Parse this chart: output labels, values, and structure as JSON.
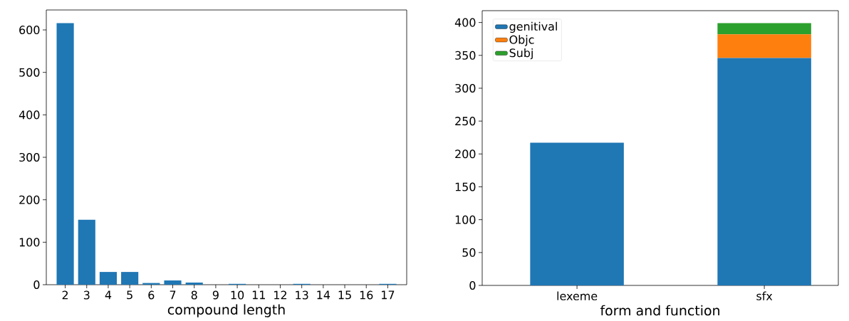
{
  "chart_data": [
    {
      "type": "bar",
      "xlabel": "compound length",
      "categories": [
        "2",
        "3",
        "4",
        "5",
        "6",
        "7",
        "8",
        "9",
        "10",
        "11",
        "12",
        "13",
        "14",
        "15",
        "16",
        "17"
      ],
      "values": [
        616,
        153,
        30,
        30,
        4,
        10,
        5,
        0,
        2,
        0,
        0,
        2,
        0,
        0,
        0,
        2
      ],
      "color": "#1f77b4",
      "ylim": [
        0,
        647
      ],
      "yticks": [
        0,
        100,
        200,
        300,
        400,
        500,
        600
      ]
    },
    {
      "type": "bar",
      "stacked": true,
      "xlabel": "form and function",
      "categories": [
        "lexeme",
        "sfx"
      ],
      "series": [
        {
          "name": "genitival",
          "color": "#1f77b4",
          "values": [
            217,
            346
          ]
        },
        {
          "name": "Objc",
          "color": "#ff7f0e",
          "values": [
            0,
            36
          ]
        },
        {
          "name": "Subj",
          "color": "#2ca02c",
          "values": [
            0,
            17
          ]
        }
      ],
      "ylim": [
        0,
        418
      ],
      "yticks": [
        0,
        50,
        100,
        150,
        200,
        250,
        300,
        350,
        400
      ],
      "legend": "top left"
    }
  ]
}
